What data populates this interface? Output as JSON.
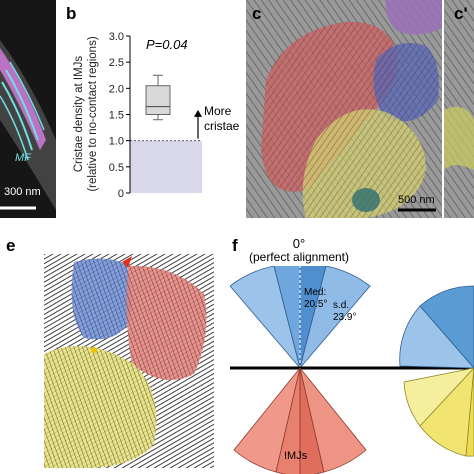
{
  "panels": {
    "a": {
      "label_mf": "MF",
      "scale_bar": "300 nm"
    },
    "b": {
      "label": "b",
      "p_value": "P=0.04",
      "arrow_text_line1": "More",
      "arrow_text_line2": "cristae",
      "ylabel_line1": "Cristae density at IMJs",
      "ylabel_line2": "(relative to no-contact regions)",
      "yticks": [
        "0",
        "0.5",
        "1.0",
        "1.5",
        "2.0",
        "2.5",
        "3.0"
      ]
    },
    "c": {
      "label": "c",
      "scale_bar": "500 nm"
    },
    "c_prime": {
      "label": "c'"
    },
    "e": {
      "label": "e"
    },
    "f": {
      "label": "f",
      "angle_title": "0°",
      "angle_subtitle": "(perfect alignment)",
      "med_label": "Med:",
      "med_value": "20.5°",
      "sd_label": "s.d.",
      "sd_value": "23.9°",
      "bottom_label": "IMJs"
    }
  },
  "chart_data": {
    "type": "box",
    "panel": "b",
    "ylabel": "Cristae density at IMJs (relative to no-contact regions)",
    "ylim": [
      0,
      3.0
    ],
    "yticks": [
      0,
      0.5,
      1.0,
      1.5,
      2.0,
      2.5,
      3.0
    ],
    "reference_bar_value": 1.0,
    "reference_line": 1.0,
    "box": {
      "whisker_low": 1.4,
      "q1": 1.5,
      "median": 1.65,
      "q3": 2.05,
      "whisker_high": 2.25
    },
    "p_value": 0.04,
    "annotation": "More cristae"
  },
  "colors": {
    "boxplot_fill": "#d9d9d9",
    "reference_fill": "#d8d8ea",
    "fan_blue": "#5b9bd5",
    "fan_red": "#e8806e",
    "fan_yellow": "#f2e880",
    "mito_red": "#d06060",
    "mito_blue": "#5866b8",
    "mito_yellow": "#d6d070",
    "mito_purple": "#9a70b8"
  }
}
